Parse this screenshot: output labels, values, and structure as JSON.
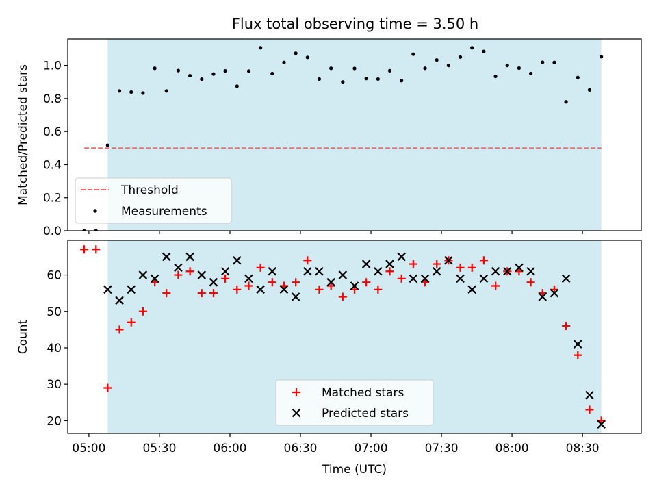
{
  "title": "Flux total observing time = 3.50 h",
  "colors": {
    "shade": "#add8e6",
    "threshold": "#ff6666",
    "measurement": "#000000",
    "matched": "#ff0000",
    "predicted": "#000000"
  },
  "chart_data": [
    {
      "type": "scatter",
      "panel": "top",
      "ylabel": "Matched/Predicted stars",
      "ylim": [
        0,
        1.16
      ],
      "xlim": [
        "04:51",
        "08:55"
      ],
      "yticks": [
        0.0,
        0.2,
        0.4,
        0.6,
        0.8,
        1.0
      ],
      "ytick_labels": [
        "0.0",
        "0.2",
        "0.4",
        "0.6",
        "0.8",
        "1.0"
      ],
      "shaded_range": [
        "05:08",
        "08:38"
      ],
      "legend": {
        "position": "lower-left",
        "entries": [
          "Threshold",
          "Measurements"
        ]
      },
      "threshold": {
        "name": "Threshold",
        "value": 0.5,
        "x_range": [
          "04:58",
          "08:38"
        ]
      },
      "series": [
        {
          "name": "Measurements",
          "x": [
            "04:58",
            "05:03",
            "05:08",
            "05:13",
            "05:18",
            "05:23",
            "05:28",
            "05:33",
            "05:38",
            "05:43",
            "05:48",
            "05:53",
            "05:58",
            "06:03",
            "06:08",
            "06:13",
            "06:18",
            "06:23",
            "06:28",
            "06:33",
            "06:38",
            "06:43",
            "06:48",
            "06:53",
            "06:58",
            "07:03",
            "07:08",
            "07:13",
            "07:18",
            "07:23",
            "07:28",
            "07:33",
            "07:38",
            "07:43",
            "07:48",
            "07:53",
            "07:58",
            "08:03",
            "08:08",
            "08:13",
            "08:18",
            "08:23",
            "08:28",
            "08:33",
            "08:38"
          ],
          "values": [
            0.0,
            0.0,
            0.517,
            0.846,
            0.839,
            0.833,
            0.983,
            0.846,
            0.969,
            0.938,
            0.917,
            0.948,
            0.967,
            0.875,
            0.966,
            1.107,
            0.951,
            1.018,
            1.074,
            1.049,
            0.918,
            0.983,
            0.9,
            0.982,
            0.921,
            0.918,
            0.968,
            0.908,
            1.068,
            0.983,
            1.033,
            1.0,
            1.051,
            1.107,
            1.085,
            0.934,
            1.0,
            0.984,
            0.951,
            1.019,
            1.018,
            0.78,
            0.927,
            0.852,
            1.053
          ]
        }
      ]
    },
    {
      "type": "scatter",
      "panel": "bottom",
      "xlabel": "Time (UTC)",
      "ylabel": "Count",
      "ylim": [
        16.5,
        69.5
      ],
      "xlim": [
        "04:51",
        "08:55"
      ],
      "yticks": [
        20,
        30,
        40,
        50,
        60
      ],
      "ytick_labels": [
        "20",
        "30",
        "40",
        "50",
        "60"
      ],
      "xticks": [
        "05:00",
        "05:30",
        "06:00",
        "06:30",
        "07:00",
        "07:30",
        "08:00",
        "08:30"
      ],
      "shaded_range": [
        "05:08",
        "08:38"
      ],
      "legend": {
        "position": "lower-center",
        "entries": [
          "Matched stars",
          "Predicted stars"
        ]
      },
      "series": [
        {
          "name": "Matched stars",
          "marker": "plus",
          "x": [
            "04:58",
            "05:03",
            "05:08",
            "05:13",
            "05:18",
            "05:23",
            "05:28",
            "05:33",
            "05:38",
            "05:43",
            "05:48",
            "05:53",
            "05:58",
            "06:03",
            "06:08",
            "06:13",
            "06:18",
            "06:23",
            "06:28",
            "06:33",
            "06:38",
            "06:43",
            "06:48",
            "06:53",
            "06:58",
            "07:03",
            "07:08",
            "07:13",
            "07:18",
            "07:23",
            "07:28",
            "07:33",
            "07:38",
            "07:43",
            "07:48",
            "07:53",
            "07:58",
            "08:03",
            "08:08",
            "08:13",
            "08:18",
            "08:23",
            "08:28",
            "08:33",
            "08:38"
          ],
          "values": [
            67,
            67,
            29,
            45,
            47,
            50,
            58,
            55,
            60,
            61,
            55,
            55,
            59,
            56,
            57,
            62,
            58,
            57,
            58,
            64,
            56,
            57,
            54,
            56,
            58,
            56,
            61,
            59,
            63,
            58,
            63,
            64,
            62,
            62,
            64,
            57,
            61,
            61,
            58,
            55,
            56,
            46,
            38,
            23,
            20
          ]
        },
        {
          "name": "Predicted stars",
          "marker": "x",
          "x": [
            "05:08",
            "05:13",
            "05:18",
            "05:23",
            "05:28",
            "05:33",
            "05:38",
            "05:43",
            "05:48",
            "05:53",
            "05:58",
            "06:03",
            "06:08",
            "06:13",
            "06:18",
            "06:23",
            "06:28",
            "06:33",
            "06:38",
            "06:43",
            "06:48",
            "06:53",
            "06:58",
            "07:03",
            "07:08",
            "07:13",
            "07:18",
            "07:23",
            "07:28",
            "07:33",
            "07:38",
            "07:43",
            "07:48",
            "07:53",
            "07:58",
            "08:03",
            "08:08",
            "08:13",
            "08:18",
            "08:23",
            "08:28",
            "08:33",
            "08:38"
          ],
          "values": [
            56,
            53,
            56,
            60,
            59,
            65,
            62,
            65,
            60,
            58,
            61,
            64,
            59,
            56,
            61,
            56,
            54,
            61,
            61,
            58,
            60,
            57,
            63,
            61,
            63,
            65,
            59,
            59,
            61,
            64,
            59,
            56,
            59,
            61,
            61,
            62,
            61,
            54,
            55,
            59,
            41,
            27,
            19
          ]
        }
      ]
    }
  ]
}
